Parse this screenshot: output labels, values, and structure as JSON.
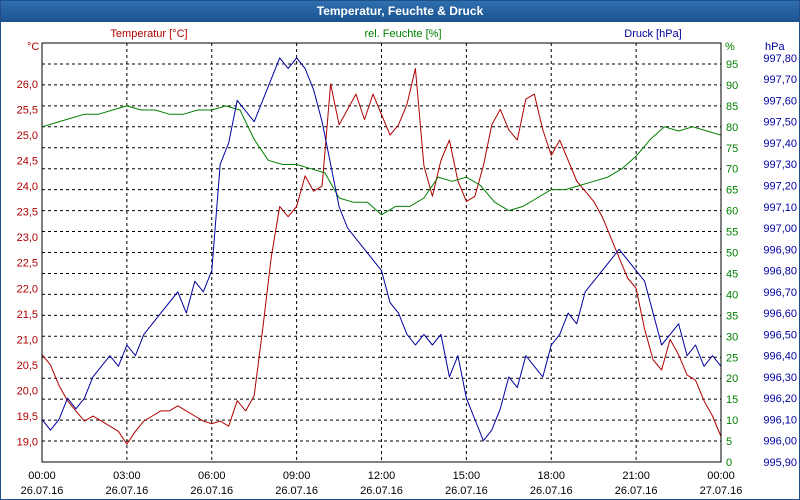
{
  "window": {
    "title": "Temperatur, Feuchte & Druck"
  },
  "chart_data": {
    "type": "line",
    "title": "Temperatur, Feuchte & Druck",
    "x_ticks": [
      {
        "time": "00:00",
        "date": "26.07.16"
      },
      {
        "time": "03:00",
        "date": "26.07.16"
      },
      {
        "time": "06:00",
        "date": "26.07.16"
      },
      {
        "time": "09:00",
        "date": "26.07.16"
      },
      {
        "time": "12:00",
        "date": "26.07.16"
      },
      {
        "time": "15:00",
        "date": "26.07.16"
      },
      {
        "time": "18:00",
        "date": "26.07.16"
      },
      {
        "time": "21:00",
        "date": "26.07.16"
      },
      {
        "time": "00:00",
        "date": "27.07.16"
      }
    ],
    "x_range_hours": [
      0,
      24
    ],
    "axes": {
      "temperature": {
        "label": "Temperatur [°C]",
        "unit": "°C",
        "range": [
          18.6,
          26.8
        ],
        "ticks": [
          "19,0",
          "19,5",
          "20,0",
          "20,5",
          "21,0",
          "21,5",
          "22,0",
          "22,5",
          "23,0",
          "23,5",
          "24,0",
          "24,5",
          "25,0",
          "25,5",
          "26,0"
        ],
        "color": "#b00000"
      },
      "humidity": {
        "label": "rel. Feuchte [%]",
        "unit": "%",
        "range": [
          0,
          100
        ],
        "ticks": [
          "0",
          "5",
          "10",
          "15",
          "20",
          "25",
          "30",
          "35",
          "40",
          "45",
          "50",
          "55",
          "60",
          "65",
          "70",
          "75",
          "80",
          "85",
          "90",
          "95"
        ],
        "color": "#008000"
      },
      "pressure": {
        "label": "Druck [hPa]",
        "unit": "hPa",
        "range": [
          995.9,
          997.87
        ],
        "ticks": [
          "995,90",
          "996,00",
          "996,10",
          "996,20",
          "996,30",
          "996,40",
          "996,50",
          "996,60",
          "996,70",
          "996,80",
          "996,90",
          "997,00",
          "997,10",
          "997,20",
          "997,30",
          "997,40",
          "997,50",
          "997,60",
          "997,70",
          "997,80"
        ],
        "color": "#0000a0"
      }
    },
    "grid": true,
    "series": [
      {
        "name": "Temperatur [°C]",
        "axis": "temperature",
        "color": "#b00000",
        "x": [
          0,
          0.3,
          0.6,
          0.9,
          1.2,
          1.5,
          1.8,
          2.1,
          2.4,
          2.7,
          3.0,
          3.3,
          3.6,
          3.9,
          4.2,
          4.5,
          4.8,
          5.1,
          5.4,
          5.7,
          6.0,
          6.3,
          6.6,
          6.9,
          7.2,
          7.5,
          7.8,
          8.1,
          8.4,
          8.7,
          9.0,
          9.3,
          9.6,
          9.9,
          10.2,
          10.5,
          10.8,
          11.1,
          11.4,
          11.7,
          12.0,
          12.3,
          12.6,
          12.9,
          13.2,
          13.5,
          13.8,
          14.1,
          14.4,
          14.7,
          15.0,
          15.3,
          15.6,
          15.9,
          16.2,
          16.5,
          16.8,
          17.1,
          17.4,
          17.7,
          18.0,
          18.3,
          18.6,
          18.9,
          19.2,
          19.5,
          19.8,
          20.1,
          20.4,
          20.7,
          21.0,
          21.3,
          21.6,
          21.9,
          22.2,
          22.5,
          22.8,
          23.1,
          23.4,
          23.7,
          24.0
        ],
        "y": [
          20.7,
          20.5,
          20.1,
          19.8,
          19.6,
          19.4,
          19.5,
          19.4,
          19.3,
          19.2,
          18.95,
          19.2,
          19.4,
          19.5,
          19.6,
          19.6,
          19.7,
          19.6,
          19.5,
          19.4,
          19.35,
          19.4,
          19.3,
          19.8,
          19.6,
          19.9,
          21.2,
          22.6,
          23.6,
          23.4,
          23.6,
          24.2,
          23.9,
          24.0,
          26.0,
          25.2,
          25.5,
          25.8,
          25.3,
          25.8,
          25.4,
          25.0,
          25.2,
          25.6,
          26.3,
          24.4,
          23.8,
          24.5,
          24.9,
          24.1,
          23.7,
          23.8,
          24.4,
          25.2,
          25.5,
          25.1,
          24.9,
          25.7,
          25.8,
          25.1,
          24.6,
          24.9,
          24.5,
          24.1,
          23.9,
          23.7,
          23.4,
          23.0,
          22.6,
          22.2,
          22.0,
          21.2,
          20.6,
          20.4,
          21.0,
          20.7,
          20.3,
          20.2,
          19.8,
          19.5,
          19.1
        ],
        "note": "values estimated from plot"
      },
      {
        "name": "rel. Feuchte [%]",
        "axis": "humidity",
        "color": "#008000",
        "x": [
          0,
          0.5,
          1.0,
          1.5,
          2.0,
          2.5,
          3.0,
          3.5,
          4.0,
          4.5,
          5.0,
          5.5,
          6.0,
          6.5,
          7.0,
          7.5,
          8.0,
          8.5,
          9.0,
          9.5,
          10.0,
          10.5,
          11.0,
          11.5,
          12.0,
          12.5,
          13.0,
          13.5,
          14.0,
          14.5,
          15.0,
          15.5,
          16.0,
          16.5,
          17.0,
          17.5,
          18.0,
          18.5,
          19.0,
          19.5,
          20.0,
          20.5,
          21.0,
          21.5,
          22.0,
          22.5,
          23.0,
          23.5,
          24.0
        ],
        "y": [
          80,
          81,
          82,
          83,
          83,
          84,
          85,
          84,
          84,
          83,
          83,
          84,
          84,
          85,
          84,
          77,
          72,
          71,
          71,
          70,
          69,
          63,
          62,
          62,
          59,
          61,
          61,
          63,
          68,
          67,
          68,
          66,
          62,
          60,
          61,
          63,
          65,
          65,
          66,
          67,
          68,
          70,
          73,
          77,
          80,
          79,
          80,
          79,
          78
        ],
        "note": "values estimated from plot"
      },
      {
        "name": "Druck [hPa]",
        "axis": "pressure",
        "color": "#0000a0",
        "x": [
          0,
          0.3,
          0.6,
          0.9,
          1.2,
          1.5,
          1.8,
          2.1,
          2.4,
          2.7,
          3.0,
          3.3,
          3.6,
          3.9,
          4.2,
          4.5,
          4.8,
          5.1,
          5.4,
          5.7,
          6.0,
          6.3,
          6.6,
          6.9,
          7.2,
          7.5,
          7.8,
          8.1,
          8.4,
          8.7,
          9.0,
          9.3,
          9.6,
          9.9,
          10.2,
          10.5,
          10.8,
          11.1,
          11.4,
          11.7,
          12.0,
          12.3,
          12.6,
          12.9,
          13.2,
          13.5,
          13.8,
          14.1,
          14.4,
          14.7,
          15.0,
          15.3,
          15.6,
          15.9,
          16.2,
          16.5,
          16.8,
          17.1,
          17.4,
          17.7,
          18.0,
          18.3,
          18.6,
          18.9,
          19.2,
          19.5,
          19.8,
          20.1,
          20.4,
          20.7,
          21.0,
          21.3,
          21.6,
          21.9,
          22.2,
          22.5,
          22.8,
          23.1,
          23.4,
          23.7,
          24.0
        ],
        "y": [
          996.1,
          996.05,
          996.1,
          996.2,
          996.15,
          996.2,
          996.3,
          996.35,
          996.4,
          996.35,
          996.45,
          996.4,
          996.5,
          996.55,
          996.6,
          996.65,
          996.7,
          996.6,
          996.75,
          996.7,
          996.8,
          997.3,
          997.4,
          997.6,
          997.55,
          997.5,
          997.6,
          997.7,
          997.8,
          997.75,
          997.8,
          997.75,
          997.65,
          997.5,
          997.3,
          997.1,
          997.0,
          996.95,
          996.9,
          996.85,
          996.8,
          996.65,
          996.6,
          996.5,
          996.45,
          996.5,
          996.45,
          996.5,
          996.3,
          996.4,
          996.2,
          996.1,
          996.0,
          996.05,
          996.15,
          996.3,
          996.25,
          996.4,
          996.35,
          996.3,
          996.45,
          996.5,
          996.6,
          996.55,
          996.7,
          996.75,
          996.8,
          996.85,
          996.9,
          996.85,
          996.8,
          996.75,
          996.6,
          996.45,
          996.5,
          996.55,
          996.4,
          996.45,
          996.35,
          996.4,
          996.35
        ],
        "note": "values estimated from plot"
      }
    ]
  }
}
